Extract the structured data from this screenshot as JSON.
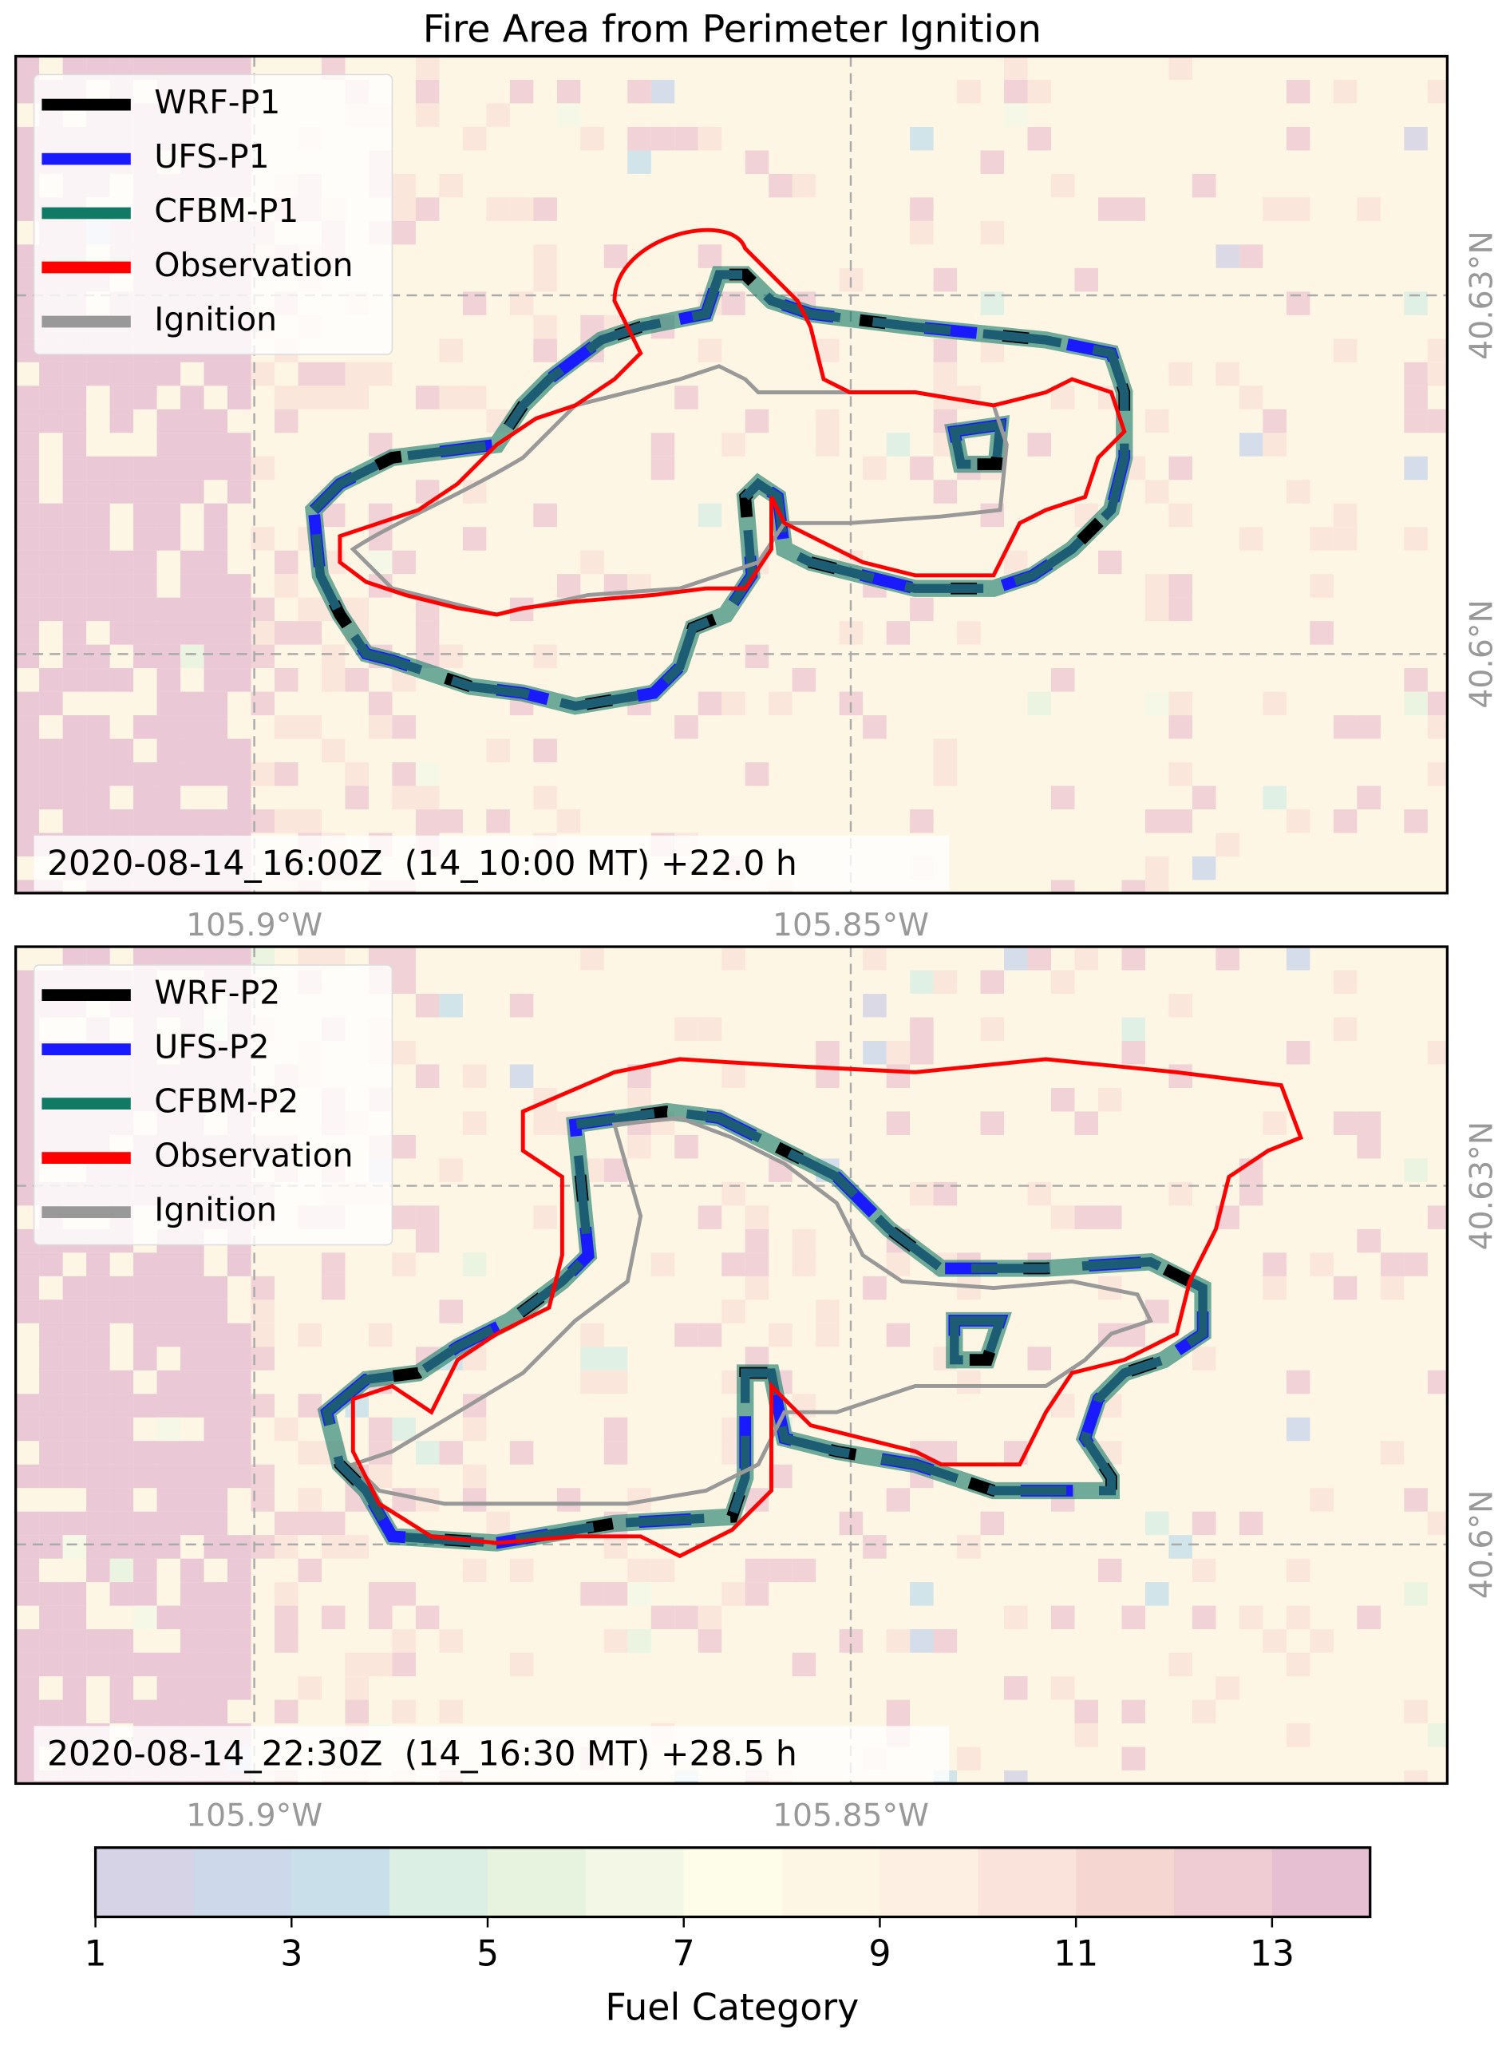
{
  "chart_data": {
    "type": "map",
    "title": "Fire Area from Perimeter Ignition",
    "panels": [
      {
        "series": [
          {
            "name": "WRF-P1",
            "color": "#000000"
          },
          {
            "name": "UFS-P1",
            "color": "#1a1aff"
          },
          {
            "name": "CFBM-P1",
            "color": "#117a65"
          },
          {
            "name": "Observation",
            "color": "#ff0000"
          },
          {
            "name": "Ignition",
            "color": "#999999"
          }
        ],
        "annotation": "2020-08-14_16:00Z  (14_10:00 MT) +22.0 h",
        "xlim": [
          -105.92,
          -105.8
        ],
        "ylim": [
          40.58,
          40.65
        ],
        "xticks": [
          {
            "value": -105.9,
            "label": "105.9°W"
          },
          {
            "value": -105.85,
            "label": "105.85°W"
          }
        ],
        "yticks": [
          {
            "value": 40.6,
            "label": "40.6°N"
          },
          {
            "value": 40.63,
            "label": "40.63°N"
          }
        ],
        "grid": true
      },
      {
        "series": [
          {
            "name": "WRF-P2",
            "color": "#000000"
          },
          {
            "name": "UFS-P2",
            "color": "#1a1aff"
          },
          {
            "name": "CFBM-P2",
            "color": "#117a65"
          },
          {
            "name": "Observation",
            "color": "#ff0000"
          },
          {
            "name": "Ignition",
            "color": "#999999"
          }
        ],
        "annotation": "2020-08-14_22:30Z  (14_16:30 MT) +28.5 h",
        "xlim": [
          -105.92,
          -105.8
        ],
        "ylim": [
          40.58,
          40.65
        ],
        "xticks": [
          {
            "value": -105.9,
            "label": "105.9°W"
          },
          {
            "value": -105.85,
            "label": "105.85°W"
          }
        ],
        "yticks": [
          {
            "value": 40.6,
            "label": "40.6°N"
          },
          {
            "value": 40.63,
            "label": "40.63°N"
          }
        ],
        "grid": true
      }
    ],
    "colorbar": {
      "label": "Fuel Category",
      "lim": [
        1,
        14
      ],
      "ticks": [
        1,
        3,
        5,
        7,
        9,
        11,
        13
      ],
      "colors": [
        "#d6d3e6",
        "#cdd8ea",
        "#c9e0ea",
        "#dcefe4",
        "#e7f3df",
        "#f3f8e6",
        "#fdfdea",
        "#fef6e5",
        "#fdf0e2",
        "#fae3da",
        "#f6d6d0",
        "#efcbd3",
        "#e6bfd3"
      ]
    }
  }
}
